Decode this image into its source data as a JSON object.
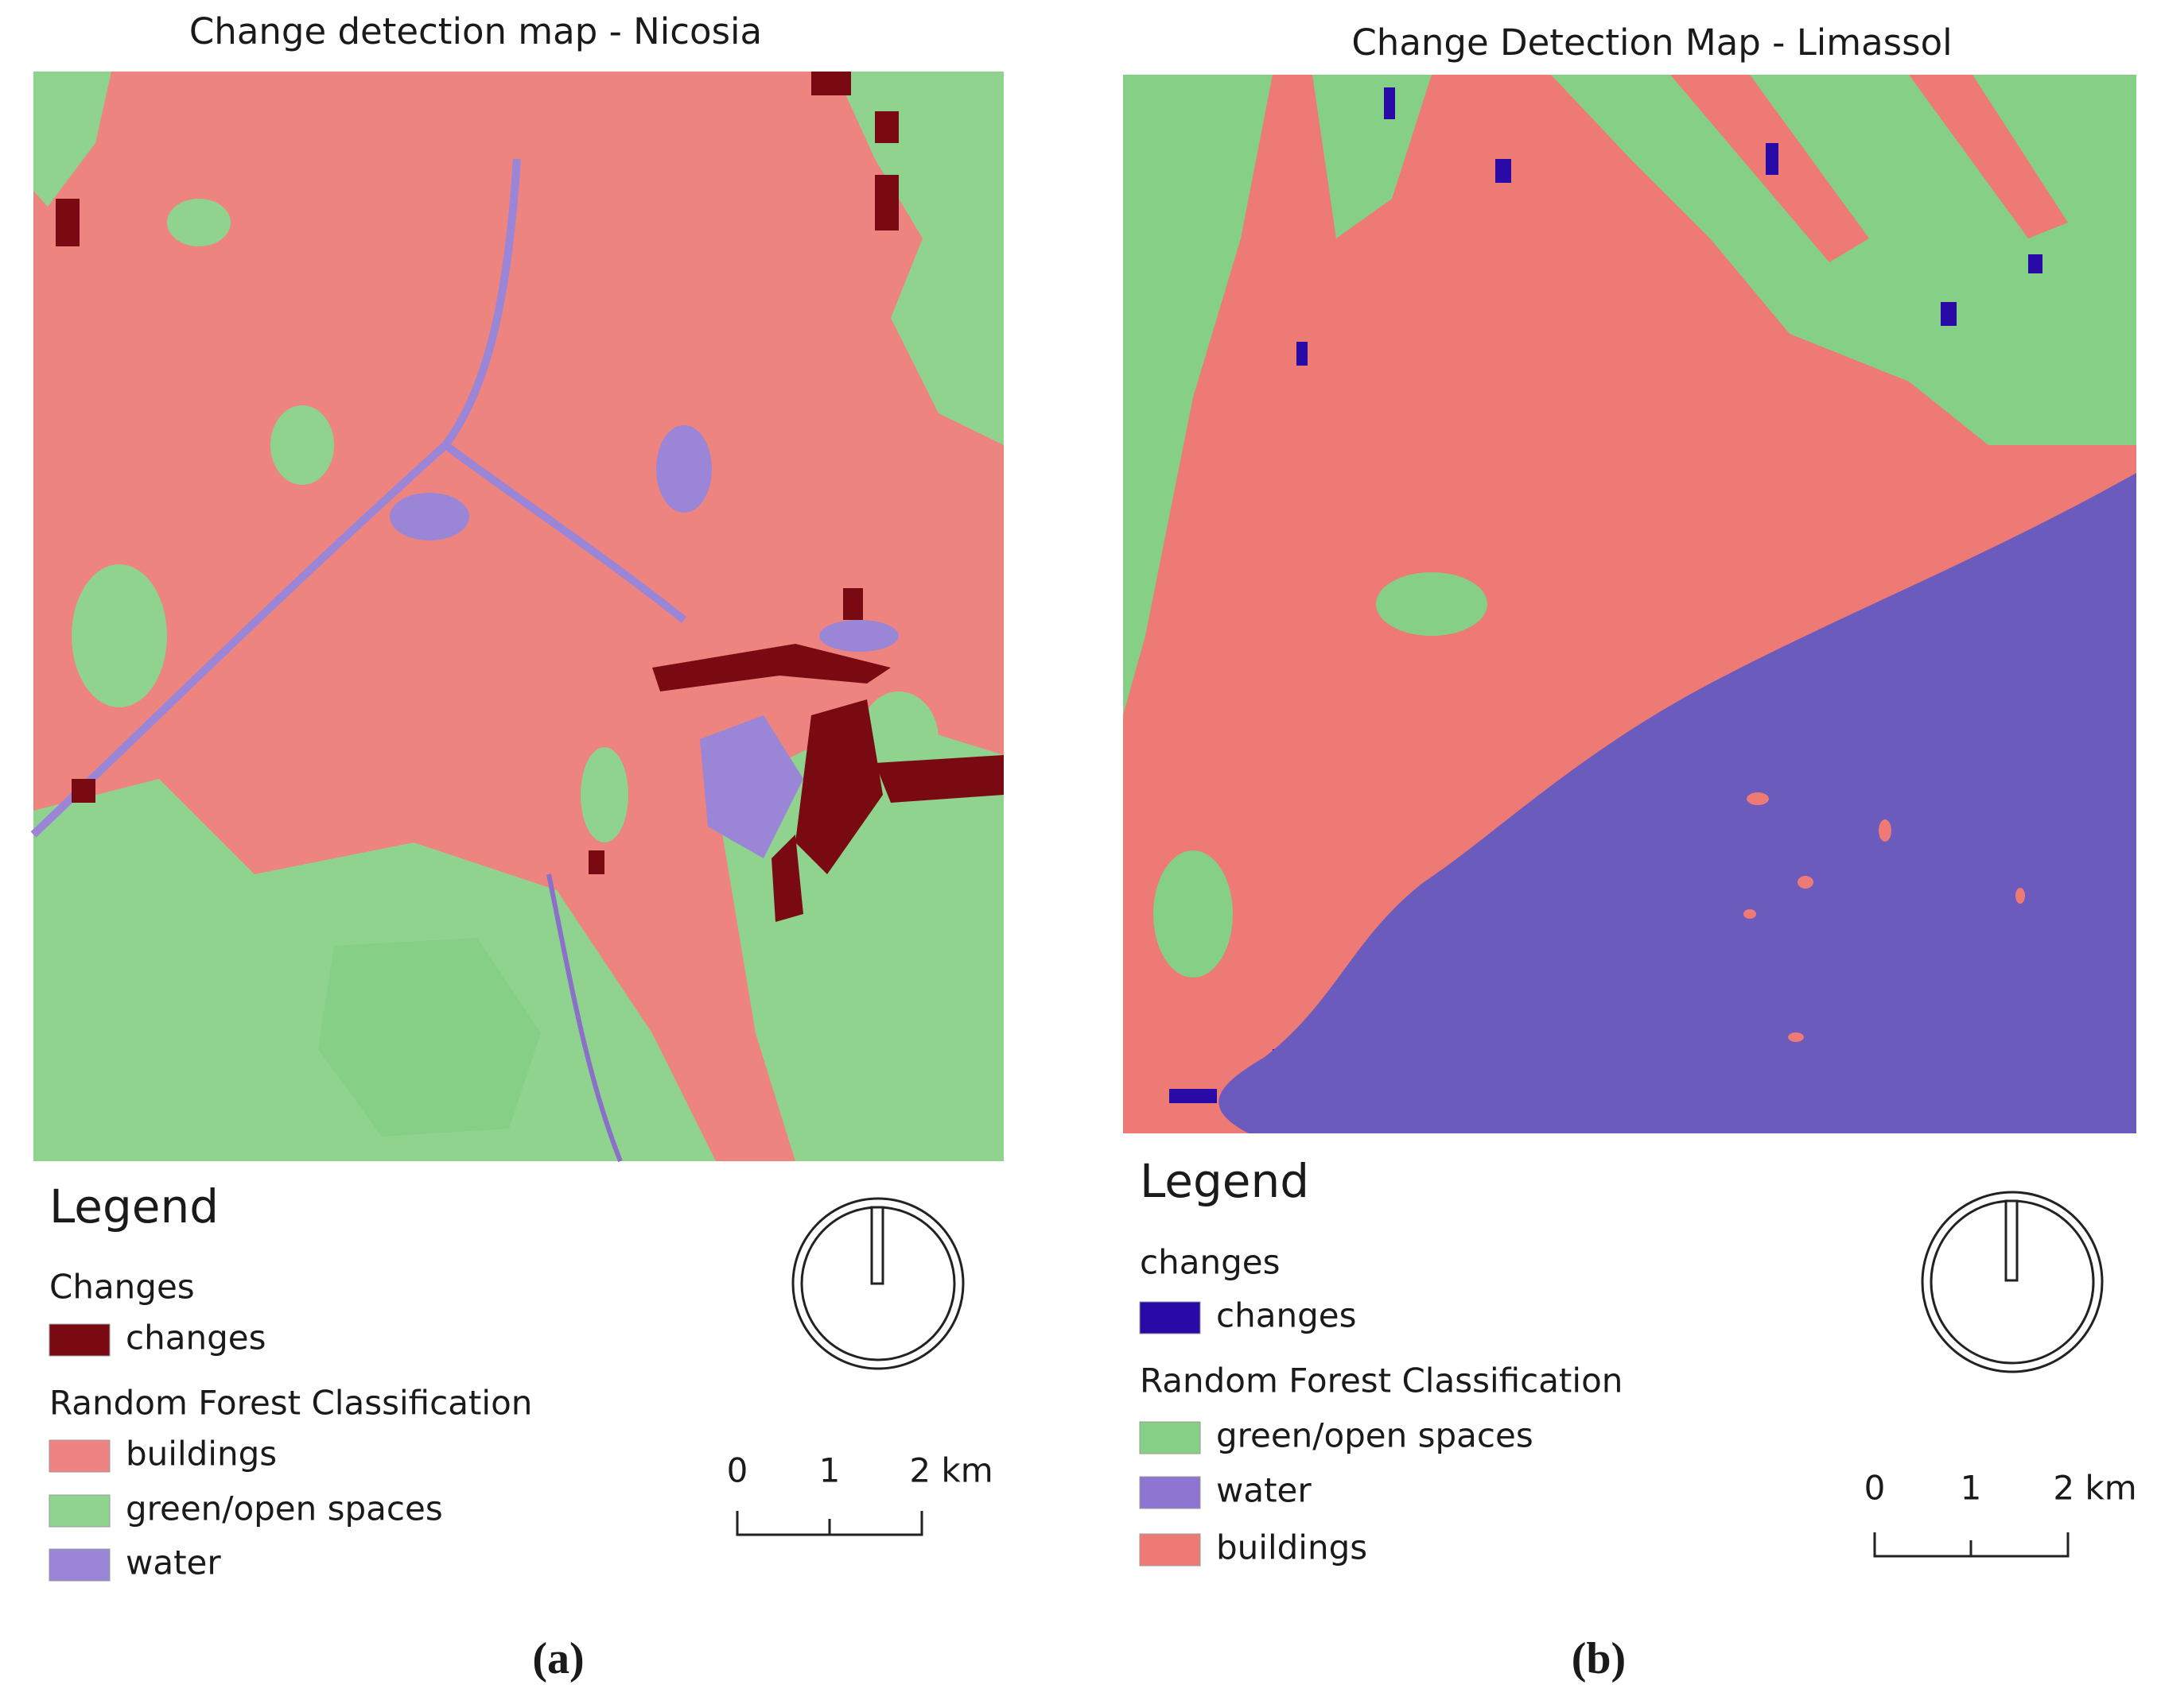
{
  "panels": [
    {
      "title": "Change detection map - Nicosia",
      "legend_title": "Legend",
      "groups": [
        {
          "name": "Changes",
          "items": [
            {
              "label": "changes",
              "color": "#7a0a12"
            }
          ]
        },
        {
          "name": "Random Forest Classification",
          "items": [
            {
              "label": "buildings",
              "color": "#ef8383"
            },
            {
              "label": "green/open spaces",
              "color": "#8fd38f"
            },
            {
              "label": "water",
              "color": "#9a85d6"
            }
          ]
        }
      ],
      "scale_labels": [
        "0",
        "1",
        "2 km"
      ],
      "caption": "(a)"
    },
    {
      "title": "Change Detection Map - Limassol",
      "legend_title": "Legend",
      "groups": [
        {
          "name": "changes",
          "items": [
            {
              "label": "changes",
              "color": "#2a0aa6"
            }
          ]
        },
        {
          "name": "Random Forest Classification",
          "items": [
            {
              "label": "green/open spaces",
              "color": "#86cf86"
            },
            {
              "label": "water",
              "color": "#8f75d2"
            },
            {
              "label": "buildings",
              "color": "#ee7a76"
            }
          ]
        }
      ],
      "scale_labels": [
        "0",
        "1",
        "2 km"
      ],
      "caption": "(b)"
    }
  ]
}
